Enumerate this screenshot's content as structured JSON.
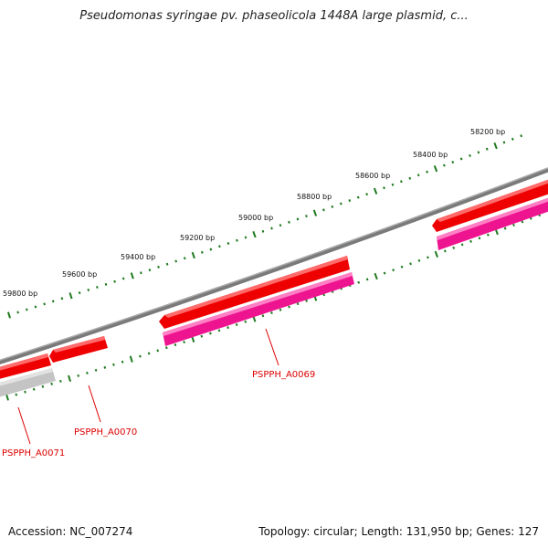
{
  "title": "Pseudomonas syringae pv. phaseolicola 1448A large plasmid, c...",
  "footer": {
    "accession": "Accession: NC_007274",
    "stats": "Topology: circular; Length: 131,950 bp; Genes: 127"
  },
  "scale": {
    "unit": "bp",
    "labels": [
      "58200 bp",
      "58400 bp",
      "58600 bp",
      "58800 bp",
      "59000 bp",
      "59200 bp",
      "59400 bp",
      "59600 bp",
      "59800 bp"
    ]
  },
  "genes": [
    {
      "name": "PSPPH_A0069"
    },
    {
      "name": "PSPPH_A0070"
    },
    {
      "name": "PSPPH_A0071"
    }
  ],
  "colors": {
    "backbone": "#7a7a7a",
    "gene_red": "#ee0000",
    "gene_pink": "#ee1490",
    "gene_grey": "#c4c4c4",
    "tick": "#1e7a1e",
    "gene_label": "#dd0000"
  }
}
